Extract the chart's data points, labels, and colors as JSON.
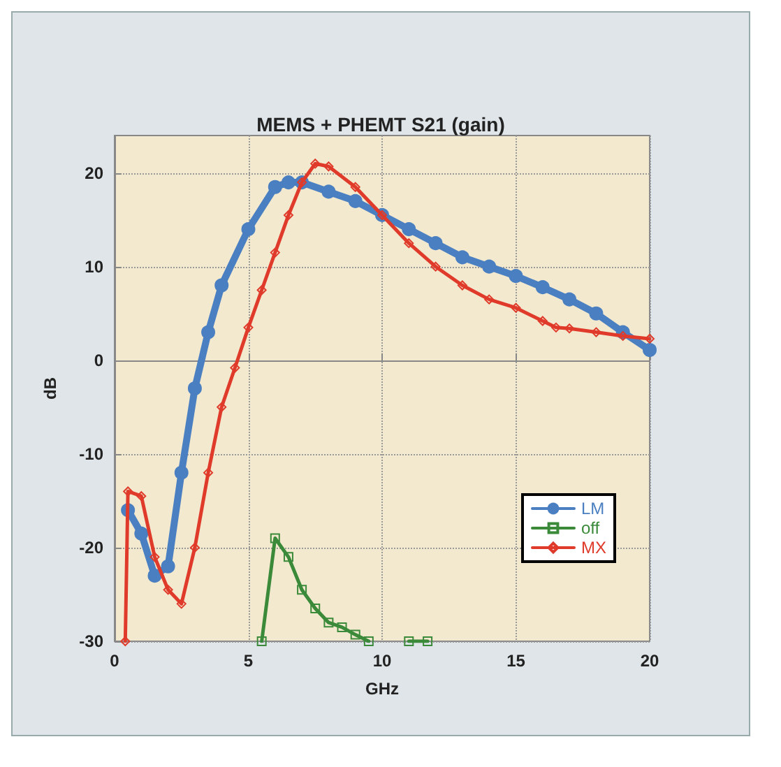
{
  "chart_data": {
    "type": "line",
    "title": "MEMS + PHEMT S21 (gain)",
    "xlabel": "GHz",
    "ylabel": "dB",
    "xlim": [
      0,
      20
    ],
    "xticks": [
      0,
      5,
      10,
      15,
      20
    ],
    "ylim": [
      -30,
      24
    ],
    "yticks": [
      -30,
      -20,
      -10,
      0,
      10,
      20
    ],
    "grid": true,
    "legend": "right",
    "line_style": "solid",
    "series": [
      {
        "name": "LM",
        "color": "#4a7fc1",
        "marker": "circle",
        "x": [
          0.5,
          1,
          1.5,
          2,
          2.5,
          3,
          3.5,
          4,
          5,
          6,
          6.5,
          7,
          8,
          9,
          10,
          11,
          12,
          13,
          14,
          15,
          16,
          17,
          18,
          19,
          20
        ],
        "values": [
          -16,
          -18.5,
          -23,
          -22,
          -12,
          -3,
          3,
          8,
          14,
          18.5,
          19,
          19,
          18,
          17,
          15.5,
          14,
          12.5,
          11,
          10,
          9,
          7.8,
          6.5,
          5,
          3,
          1.1
        ]
      },
      {
        "name": "off",
        "color": "#3a8a3a",
        "marker": "square",
        "x": [
          5.5,
          6,
          6.5,
          7,
          7.5,
          8,
          8.5,
          9,
          9.5,
          10.5,
          11,
          11.7
        ],
        "values": [
          -30,
          -19,
          -21,
          -24.5,
          -26.5,
          -28,
          -28.5,
          -29.3,
          -30,
          null,
          -30,
          -30
        ]
      },
      {
        "name": "MX",
        "color": "#e03a2a",
        "marker": "diamond",
        "x": [
          0.4,
          0.5,
          1,
          1.5,
          2,
          2.5,
          3,
          3.5,
          4,
          4.5,
          5,
          5.5,
          6,
          6.5,
          7,
          7.5,
          8,
          9,
          10,
          11,
          12,
          13,
          14,
          15,
          16,
          16.5,
          17,
          18,
          19,
          20
        ],
        "values": [
          -30,
          -14,
          -14.5,
          -21,
          -24.5,
          -26,
          -20,
          -12,
          -5,
          -0.8,
          3.5,
          7.5,
          11.5,
          15.5,
          19,
          21,
          20.7,
          18.5,
          15.5,
          12.5,
          10,
          8,
          6.5,
          5.6,
          4.2,
          3.5,
          3.4,
          3,
          2.6,
          2.3
        ]
      }
    ]
  }
}
